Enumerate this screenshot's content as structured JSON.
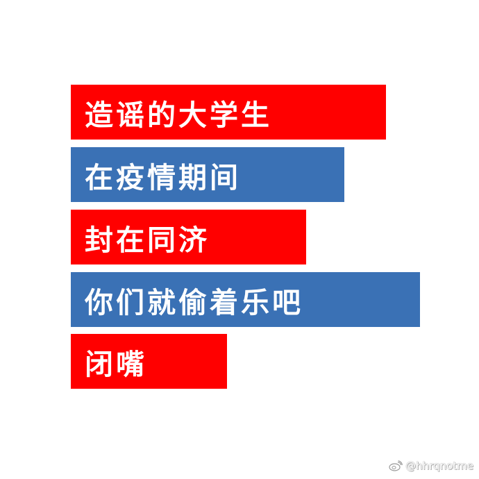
{
  "banners": [
    {
      "text": "造谣的大学生",
      "color": "#ff0000"
    },
    {
      "text": "在疫情期间",
      "color": "#3a71b5"
    },
    {
      "text": "封在同济",
      "color": "#ff0000"
    },
    {
      "text": "你们就偷着乐吧",
      "color": "#3a71b5"
    },
    {
      "text": "闭嘴",
      "color": "#ff0000"
    }
  ],
  "watermark": {
    "icon": "weibo-icon",
    "handle": "@hhrqnotme"
  }
}
